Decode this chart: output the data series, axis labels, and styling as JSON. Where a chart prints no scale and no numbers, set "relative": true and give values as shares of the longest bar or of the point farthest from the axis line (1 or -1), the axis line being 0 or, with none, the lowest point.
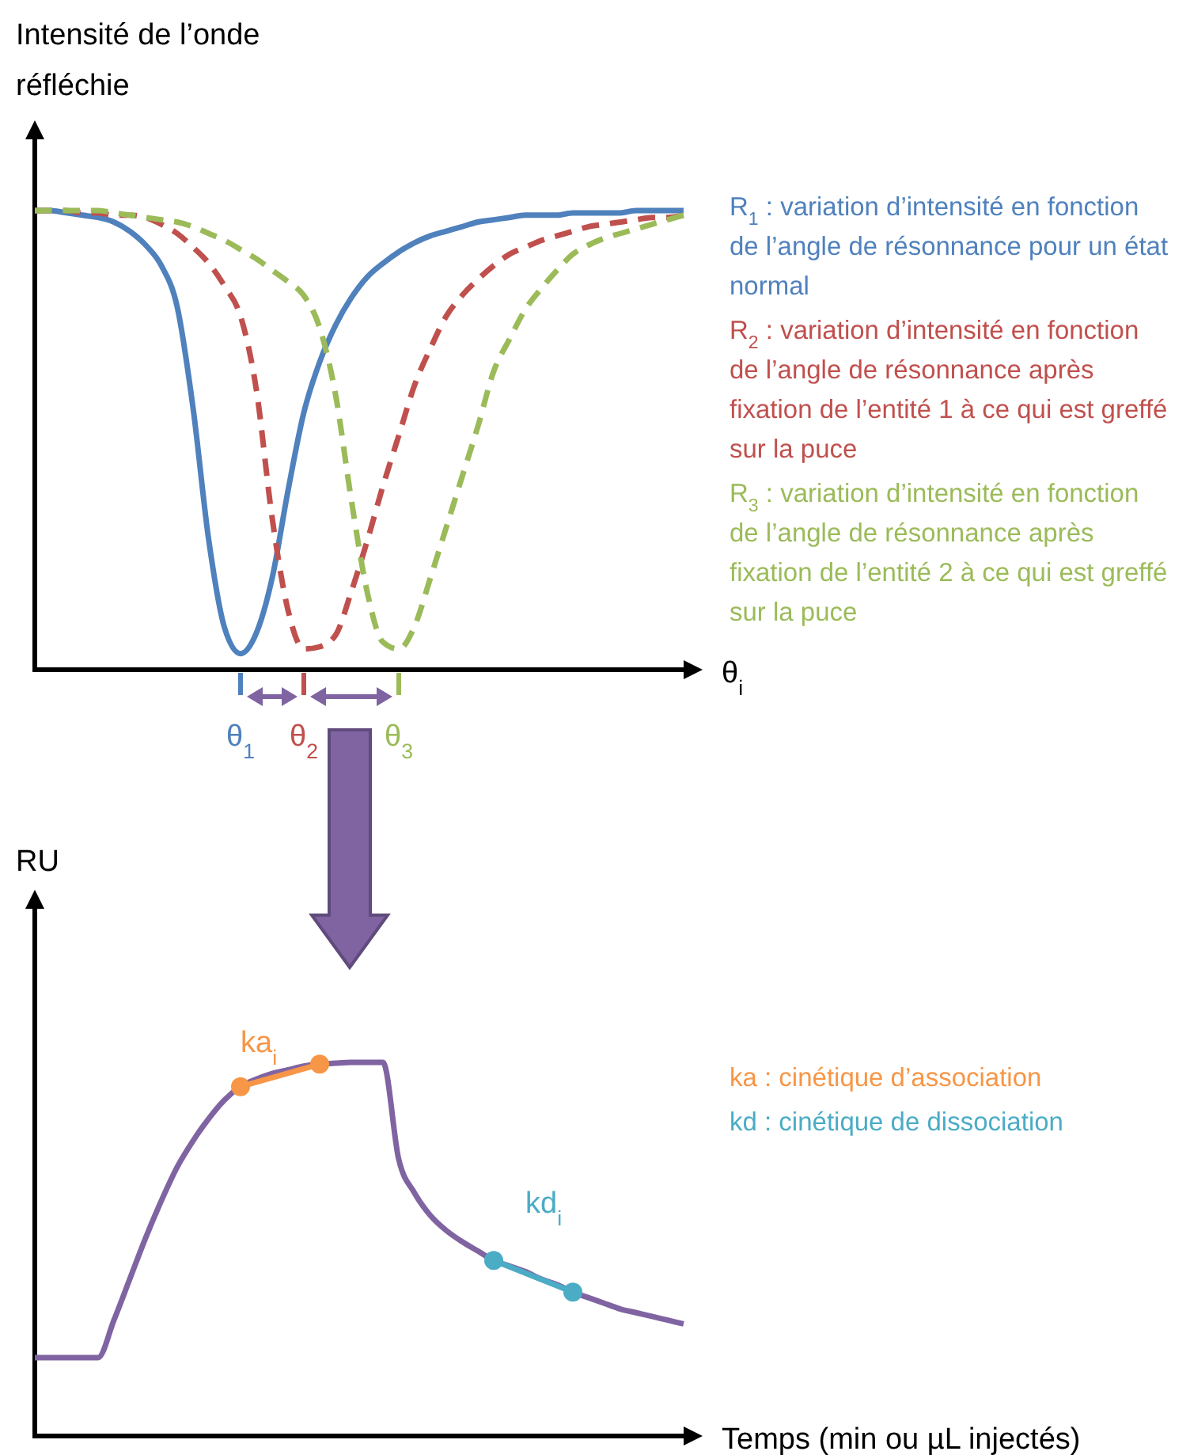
{
  "chart_data": [
    {
      "type": "line",
      "relative": true,
      "ylabel": "Intensité de l’onde réfléchie",
      "xlabel": "θ$_{i}$",
      "legend": "right",
      "categories": [
        null,
        null,
        null,
        null,
        null,
        null,
        null,
        null,
        null,
        null,
        null,
        null,
        null,
        null,
        null,
        null,
        null,
        null,
        null,
        null,
        null,
        null,
        null,
        null,
        null,
        null,
        null,
        null,
        null,
        null,
        null,
        null,
        null,
        null,
        null,
        null,
        null,
        null,
        null,
        null,
        null,
        null
      ],
      "annotations": [
        "θ$_{1}$",
        "θ$_{2}$",
        "θ$_{3}$"
      ],
      "series": [
        {
          "name": "R$_{1}$ : variation d’intensité en fonction de l’angle de résonnance pour un état normal",
          "color": "#4f81bd",
          "line_style": "solid",
          "values": [
            1,
            1,
            0.995,
            0.99,
            0.985,
            0.975,
            0.955,
            0.925,
            0.88,
            0.79,
            0.57,
            0.28,
            0.09,
            0.035,
            0.08,
            0.2,
            0.39,
            0.56,
            0.67,
            0.75,
            0.81,
            0.855,
            0.885,
            0.91,
            0.93,
            0.945,
            0.955,
            0.965,
            0.975,
            0.98,
            0.985,
            0.99,
            0.99,
            0.99,
            0.995,
            0.995,
            0.995,
            0.995,
            1,
            1,
            1,
            1
          ]
        },
        {
          "name": "R$_{2}$ : variation d’intensité en fonction de l’angle de résonnance après fixation de l’entité 1 à ce qui est greffé sur la puce",
          "color": "#c0504d",
          "line_style": "dashed",
          "values": [
            1,
            1,
            1,
            0.995,
            0.995,
            0.99,
            0.99,
            0.985,
            0.97,
            0.95,
            0.92,
            0.885,
            0.835,
            0.77,
            0.61,
            0.33,
            0.13,
            0.045,
            0.05,
            0.075,
            0.17,
            0.28,
            0.4,
            0.51,
            0.62,
            0.7,
            0.77,
            0.815,
            0.85,
            0.88,
            0.905,
            0.92,
            0.935,
            0.945,
            0.955,
            0.965,
            0.97,
            0.975,
            0.98,
            0.985,
            0.985,
            0.99
          ]
        },
        {
          "name": "R$_{3}$ : variation d’intensité en fonction de l’angle de résonnance après fixation de l’entité 2 à ce qui est greffé sur la puce",
          "color": "#9bbb59",
          "line_style": "dashed",
          "values": [
            1,
            1,
            1,
            1,
            1,
            0.995,
            0.99,
            0.985,
            0.98,
            0.975,
            0.965,
            0.95,
            0.935,
            0.915,
            0.895,
            0.87,
            0.845,
            0.815,
            0.745,
            0.6,
            0.37,
            0.17,
            0.06,
            0.045,
            0.095,
            0.2,
            0.31,
            0.42,
            0.53,
            0.65,
            0.72,
            0.785,
            0.83,
            0.87,
            0.905,
            0.925,
            0.94,
            0.95,
            0.96,
            0.97,
            0.98,
            0.99
          ]
        }
      ]
    },
    {
      "type": "line",
      "relative": true,
      "ylabel": "RU",
      "xlabel": "Temps (min ou µL injectés)",
      "legend": "right",
      "categories": [
        null,
        null,
        null,
        null,
        null,
        null,
        null,
        null,
        null,
        null,
        null,
        null,
        null,
        null,
        null,
        null,
        null,
        null,
        null,
        null,
        null,
        null,
        null,
        null,
        null,
        null,
        null,
        null,
        null,
        null,
        null,
        null,
        null,
        null,
        null,
        null,
        null,
        null,
        null,
        null,
        null,
        null
      ],
      "annotations": [
        "ka$_{i}$",
        "kd$_{i}$"
      ],
      "series": [
        {
          "color": "#8064a2",
          "marker": "none",
          "values": [
            0.21,
            0.21,
            0.21,
            0.21,
            0.21,
            0.31,
            0.42,
            0.53,
            0.63,
            0.72,
            0.79,
            0.85,
            0.9,
            0.935,
            0.955,
            0.97,
            0.98,
            0.99,
            0.995,
            0.998,
            1,
            1,
            1,
            0.74,
            0.65,
            0.59,
            0.55,
            0.52,
            0.495,
            0.47,
            0.455,
            0.44,
            0.42,
            0.405,
            0.385,
            0.37,
            0.355,
            0.34,
            0.33,
            0.32,
            0.31,
            0.3
          ]
        },
        {
          "name": "ka : cinétique d’association",
          "color": "#f79646",
          "marker": "circle",
          "values": [
            null,
            null,
            null,
            null,
            null,
            null,
            null,
            null,
            null,
            null,
            null,
            null,
            null,
            0.935,
            null,
            null,
            null,
            null,
            0.995,
            null,
            null,
            null,
            null,
            null,
            null,
            null,
            null,
            null,
            null,
            null,
            null,
            null,
            null,
            null,
            null,
            null,
            null,
            null,
            null,
            null,
            null,
            null
          ]
        },
        {
          "name": "kd : cinétique de dissociation",
          "color": "#4bacc6",
          "marker": "circle",
          "values": [
            null,
            null,
            null,
            null,
            null,
            null,
            null,
            null,
            null,
            null,
            null,
            null,
            null,
            null,
            null,
            null,
            null,
            null,
            null,
            null,
            null,
            null,
            null,
            null,
            null,
            null,
            null,
            null,
            null,
            0.47,
            null,
            null,
            null,
            null,
            0.385,
            null,
            null,
            null,
            null,
            null,
            null,
            null
          ]
        }
      ]
    }
  ]
}
